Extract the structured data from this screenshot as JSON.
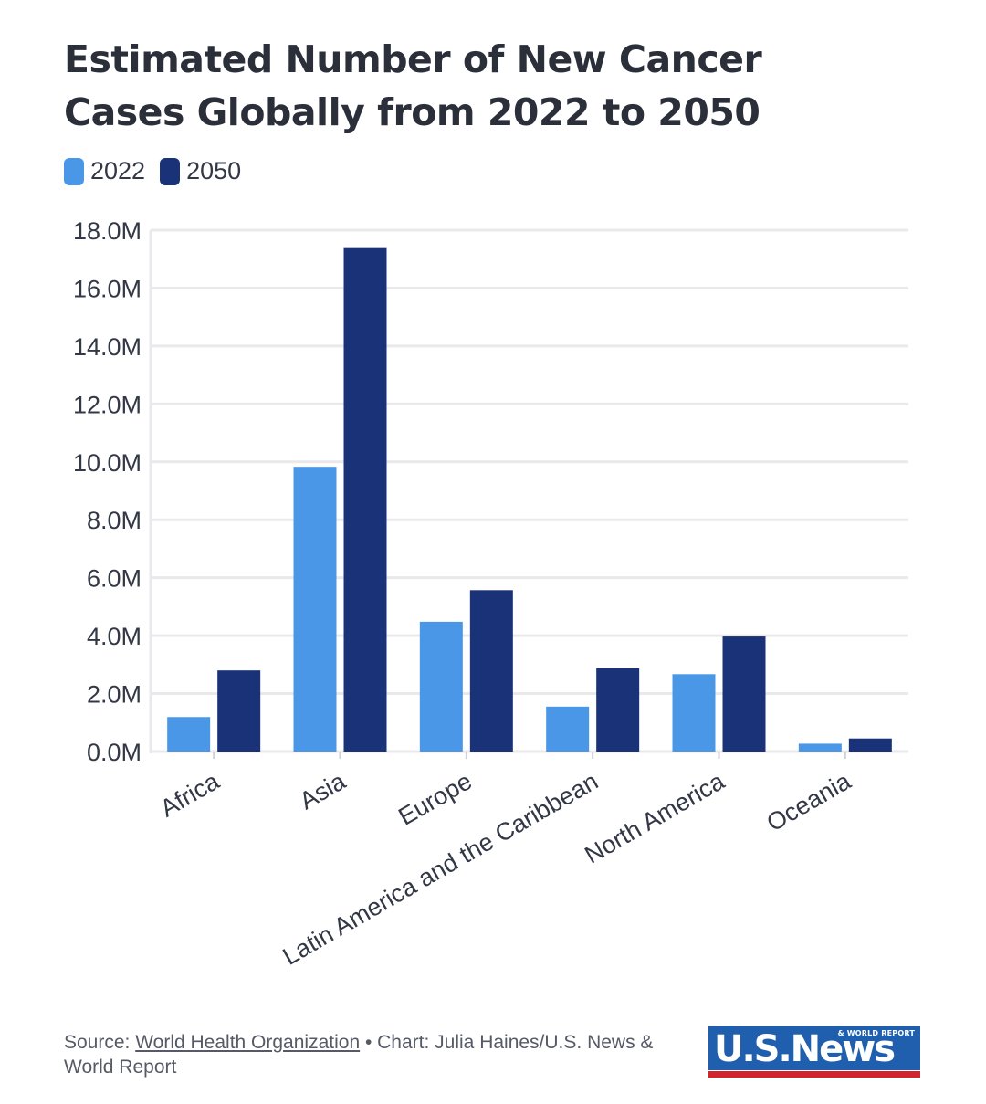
{
  "title": "Estimated Number of New Cancer Cases Globally from 2022 to 2050",
  "footer": {
    "source_prefix": "Source: ",
    "source_link": "World Health Organization",
    "credit": " • Chart: Julia Haines/U.S. News & World Report"
  },
  "logo": {
    "main": "U.S.News",
    "sub": "& WORLD REPORT"
  },
  "colors": {
    "series_2022": "#4a97e8",
    "series_2050": "#1a3378",
    "grid": "#e9e9ec",
    "text": "#333846"
  },
  "chart_data": {
    "type": "bar",
    "title": "Estimated Number of New Cancer Cases Globally from 2022 to 2050",
    "xlabel": "",
    "ylabel": "",
    "categories": [
      "Africa",
      "Asia",
      "Europe",
      "Latin America and the Caribbean",
      "North America",
      "Oceania"
    ],
    "series": [
      {
        "name": "2022",
        "values": [
          1.19,
          9.83,
          4.48,
          1.55,
          2.67,
          0.27
        ]
      },
      {
        "name": "2050",
        "values": [
          2.8,
          17.38,
          5.57,
          2.87,
          3.97,
          0.45
        ]
      }
    ],
    "value_unit": "millions",
    "ylim": [
      0,
      18
    ],
    "yticks": [
      0,
      2,
      4,
      6,
      8,
      10,
      12,
      14,
      16,
      18
    ],
    "ytick_labels": [
      "0.0M",
      "2.0M",
      "4.0M",
      "6.0M",
      "8.0M",
      "10.0M",
      "12.0M",
      "14.0M",
      "16.0M",
      "18.0M"
    ],
    "legend_position": "top-left",
    "grid": true
  }
}
